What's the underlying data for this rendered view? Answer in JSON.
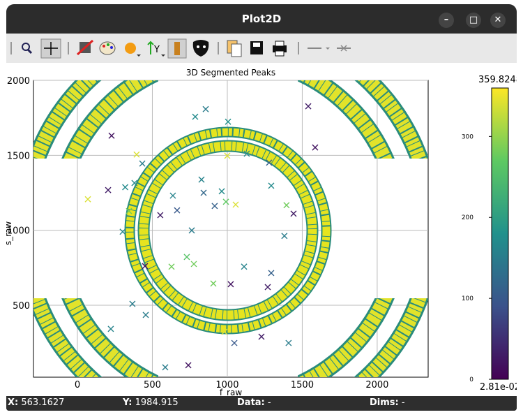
{
  "window": {
    "title": "Plot2D"
  },
  "status": {
    "x_label": "X:",
    "x_value": "563.1627",
    "y_label": "Y:",
    "y_value": "1984.915",
    "data_label": "Data:",
    "data_value": "-",
    "dims_label": "Dims:",
    "dims_value": "-"
  },
  "chart_data": {
    "type": "scatter",
    "title": "3D Segmented Peaks",
    "x_label": "f_raw",
    "y_label": "s_raw",
    "xlim": [
      -293,
      2340
    ],
    "ylim": [
      20,
      2000
    ],
    "xticks": [
      0,
      500,
      1000,
      1500,
      2000
    ],
    "yticks": [
      500,
      1000,
      1500,
      2000
    ],
    "grid": true,
    "colorbar": {
      "min": {
        "value": 0.0281,
        "label": "2.81e-02"
      },
      "max": 359.8248,
      "ticks": [
        0,
        100,
        200,
        300
      ]
    },
    "points": {
      "x": [
        228,
        856,
        786,
        1005,
        1540,
        1586,
        395,
        433,
        205,
        319,
        381,
        344,
        70,
        553,
        665,
        637,
        828,
        842,
        916,
        963,
        991,
        1056,
        1000,
        1130,
        1293,
        1279,
        1395,
        1442,
        1381,
        302,
        763,
        451,
        628,
        730,
        777,
        1112,
        1293,
        1023,
        907,
        1270,
        367,
        456,
        223,
        1047,
        1228,
        1409,
        981,
        740,
        586
      ],
      "y": [
        1631,
        1808,
        1757,
        1724,
        1827,
        1552,
        1505,
        1445,
        1268,
        1287,
        1315,
        1128,
        1207,
        1101,
        1133,
        1231,
        1338,
        1250,
        1162,
        1260,
        1190,
        1171,
        1497,
        1511,
        1297,
        1451,
        1167,
        1111,
        962,
        990,
        999,
        761,
        757,
        822,
        775,
        757,
        715,
        640,
        645,
        621,
        509,
        435,
        342,
        248,
        290,
        248,
        323,
        100,
        86
      ],
      "c": [
        20,
        150,
        170,
        180,
        30,
        20,
        340,
        150,
        30,
        170,
        170,
        280,
        340,
        30,
        100,
        160,
        160,
        120,
        110,
        170,
        270,
        340,
        340,
        170,
        170,
        110,
        280,
        30,
        150,
        170,
        150,
        20,
        280,
        260,
        280,
        160,
        110,
        20,
        280,
        30,
        150,
        150,
        160,
        100,
        30,
        150,
        340,
        20,
        150
      ]
    }
  }
}
